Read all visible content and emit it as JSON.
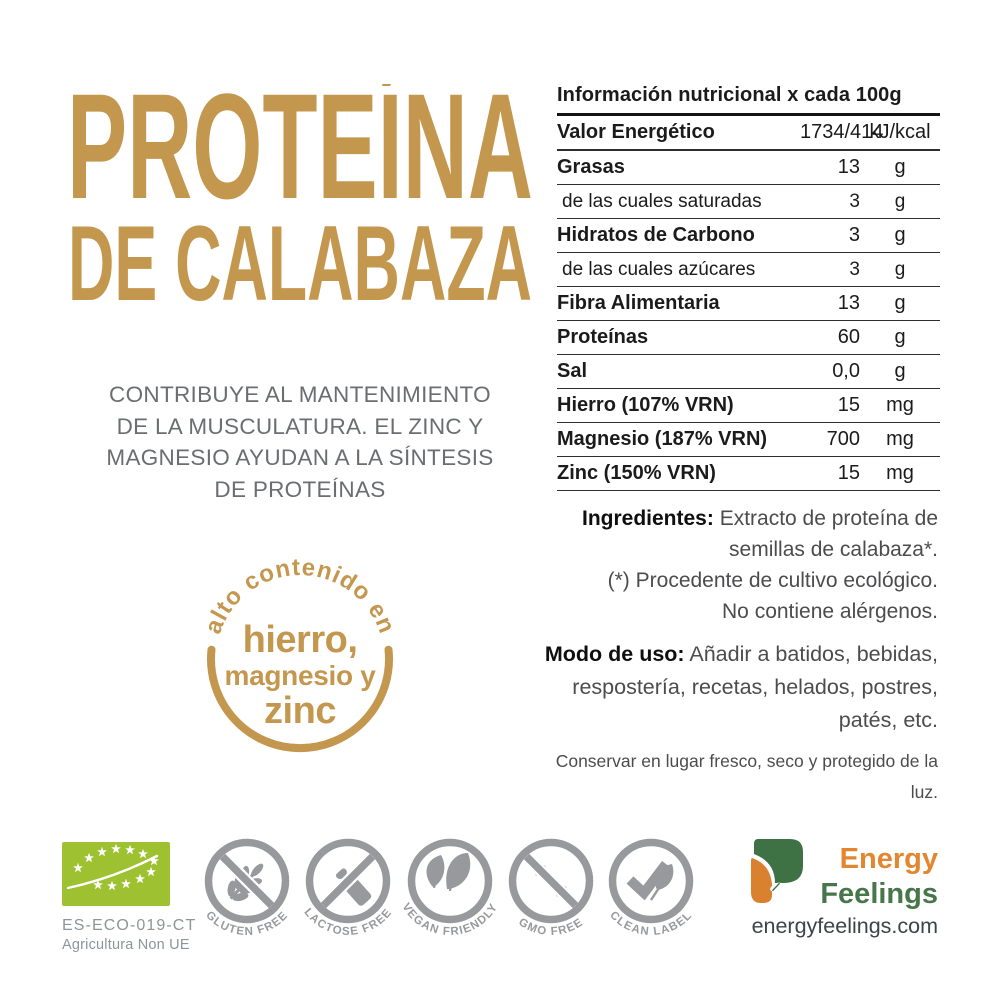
{
  "colors": {
    "gold": "#C4974F",
    "table_text": "#1B1B1B",
    "desc_text": "#6A6E71",
    "body_text": "#4C4C4E",
    "badge_gray": "#97999C",
    "eu_green": "#9DC131",
    "eu_text": "#8F9498",
    "brand_orange": "#E2862F",
    "brand_green": "#47764A",
    "brand_leaf_green": "#3E7245",
    "brand_leaf_orange": "#D9812E",
    "website_text": "#3E4347"
  },
  "title": {
    "line1": "PROTEÍNA",
    "line2": "DE CALABAZA"
  },
  "description": {
    "lines": [
      "CONTRIBUYE AL MANTENIMIENTO",
      "DE LA MUSCULATURA. EL ZINC Y",
      "MAGNESIO AYUDAN A LA SÍNTESIS",
      "DE PROTEÍNAS"
    ]
  },
  "stamp": {
    "arc_text": "alto contenido en",
    "line1": "hierro,",
    "line2": "magnesio y",
    "line3": "zinc"
  },
  "nutrition": {
    "header": "Información nutricional x cada 100g",
    "rows": [
      {
        "name": "Valor Energético",
        "value": "1734/414",
        "unit": "kJ/kcal",
        "sub": false
      },
      {
        "name": "Grasas",
        "value": "13",
        "unit": "g",
        "sub": false
      },
      {
        "name": "de las cuales saturadas",
        "value": "3",
        "unit": "g",
        "sub": true
      },
      {
        "name": "Hidratos de Carbono",
        "value": "3",
        "unit": "g",
        "sub": false
      },
      {
        "name": "de las cuales azúcares",
        "value": "3",
        "unit": "g",
        "sub": true
      },
      {
        "name": "Fibra Alimentaria",
        "value": "13",
        "unit": "g",
        "sub": false
      },
      {
        "name": "Proteínas",
        "value": "60",
        "unit": "g",
        "sub": false
      },
      {
        "name": "Sal",
        "value": "0,0",
        "unit": "g",
        "sub": false
      },
      {
        "name": "Hierro (107% VRN)",
        "value": "15",
        "unit": "mg",
        "sub": false
      },
      {
        "name": "Magnesio (187% VRN)",
        "value": "700",
        "unit": "mg",
        "sub": false
      },
      {
        "name": "Zinc (150% VRN)",
        "value": "15",
        "unit": "mg",
        "sub": false
      }
    ]
  },
  "ingredients": {
    "label": "Ingredientes:",
    "line1": " Extracto de proteína de",
    "line2": "semillas de calabaza*.",
    "note": "(*) Procedente de cultivo ecológico.",
    "allergens": "No contiene alérgenos."
  },
  "usage": {
    "label": "Modo de uso:",
    "line1": " Añadir a batidos, bebidas,",
    "line2": "respostería, recetas, helados, postres, patés, etc."
  },
  "storage": "Conservar en lugar fresco, seco y protegido de la luz.",
  "certifications": {
    "eu": {
      "code": "ES-ECO-019-CT",
      "subtitle": "Agricultura Non UE"
    },
    "badges": [
      {
        "label": "GLUTEN FREE",
        "icon": "wheat",
        "crossed": true
      },
      {
        "label": "LACTOSE FREE",
        "icon": "bottle",
        "crossed": true
      },
      {
        "label": "VEGAN FRIENDLY",
        "icon": "leaves",
        "crossed": false
      },
      {
        "label": "GMO FREE",
        "icon": "dna",
        "crossed": true
      },
      {
        "label": "CLEAN LABEL",
        "icon": "check",
        "crossed": false
      }
    ]
  },
  "brand": {
    "name_line1": "Energy",
    "name_line2": "Feelings",
    "website": "energyfeelings.com"
  }
}
